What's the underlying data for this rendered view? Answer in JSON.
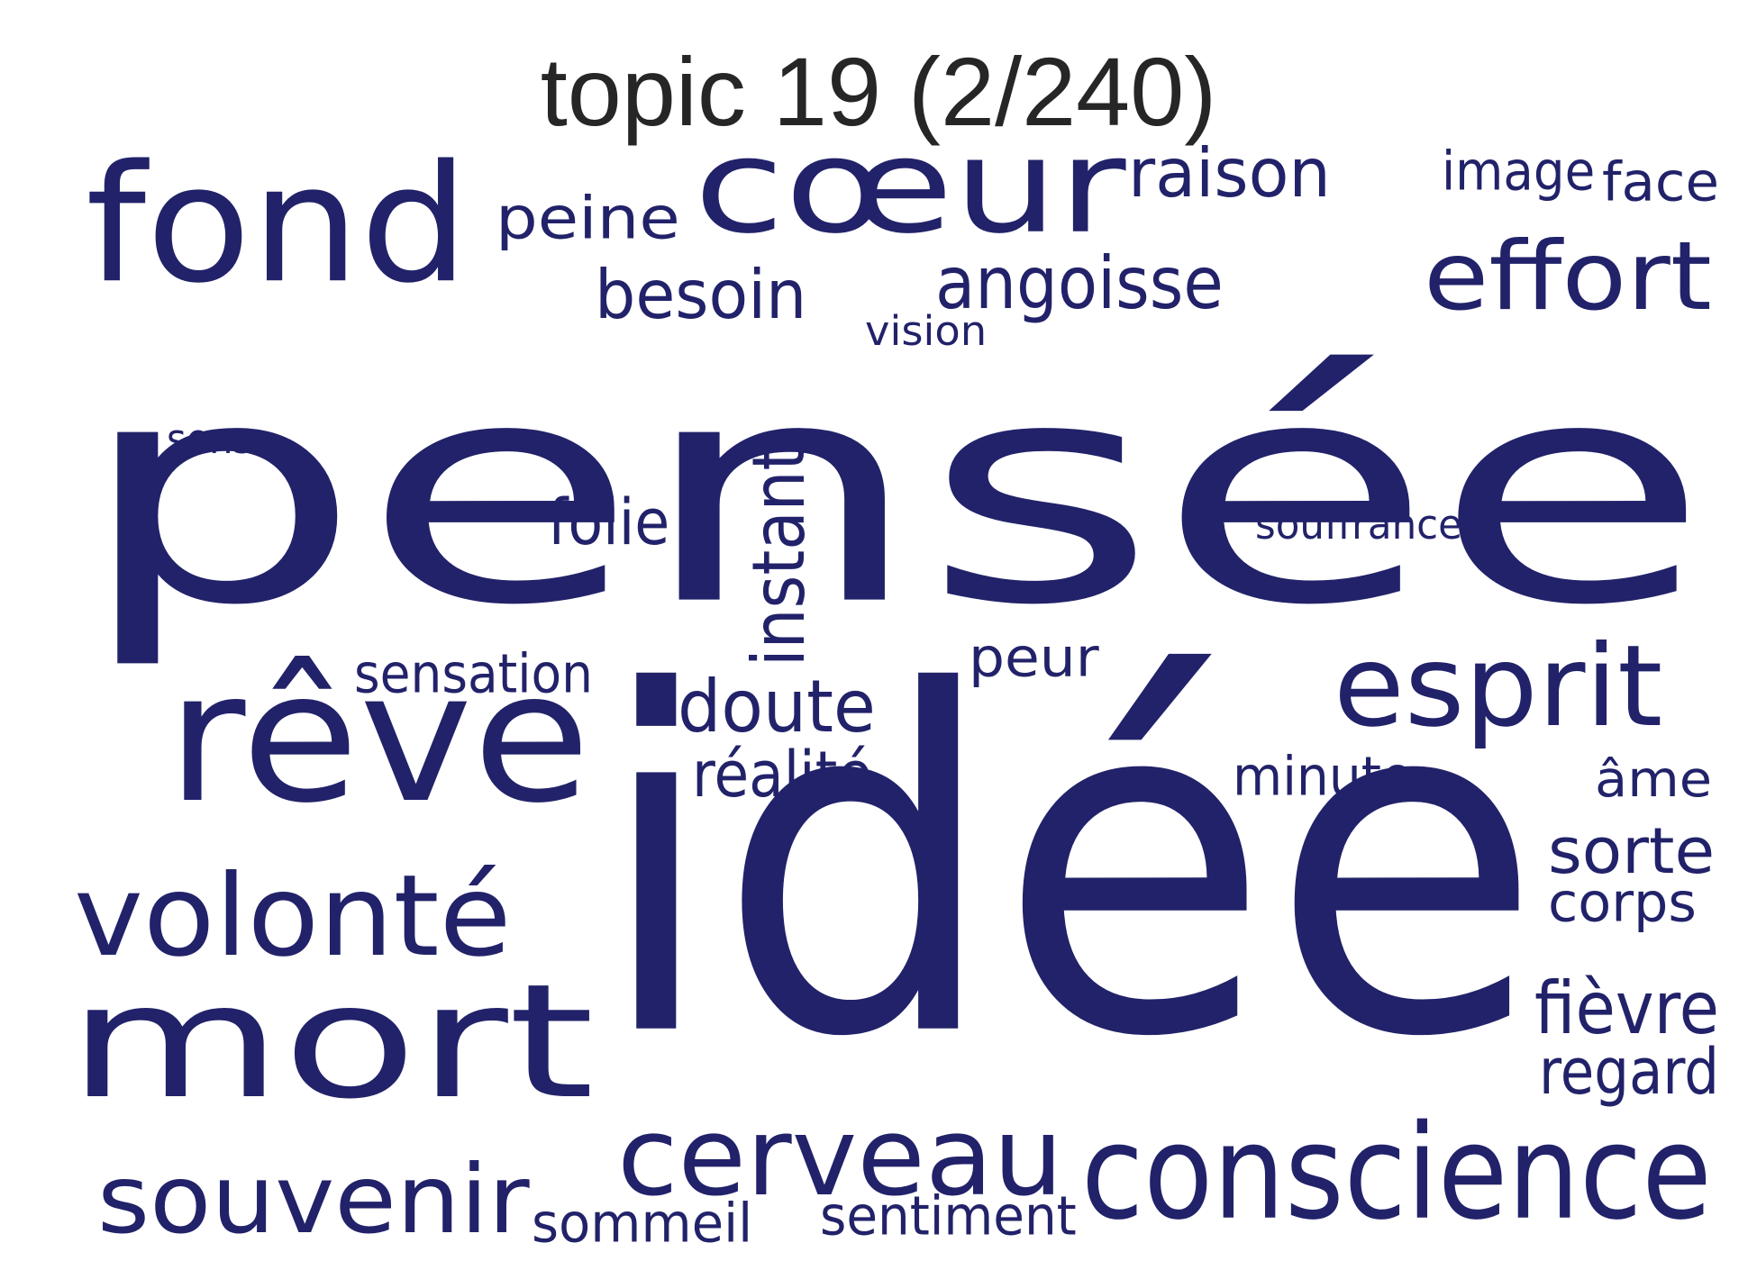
{
  "title": "topic 19 (2/240)",
  "word_color": "#22226a",
  "words": [
    "pensée",
    "idée",
    "cœur",
    "fond",
    "mort",
    "rêve",
    "volonté",
    "effort",
    "esprit",
    "conscience",
    "cerveau",
    "souvenir",
    "raison",
    "peine",
    "besoin",
    "angoisse",
    "image",
    "face",
    "vision",
    "sens",
    "folie",
    "instant",
    "souffrance",
    "sensation",
    "peur",
    "doute",
    "réalité",
    "minute",
    "âme",
    "sorte",
    "corps",
    "fièvre",
    "regard",
    "sommeil",
    "sentiment"
  ]
}
